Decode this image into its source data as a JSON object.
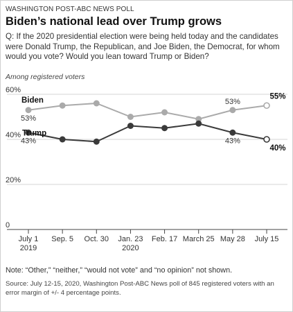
{
  "header": {
    "source_line": "WASHINGTON POST-ABC NEWS POLL",
    "title": "Biden’s national lead over Trump grows",
    "question": "Q: If the 2020 presidential election were being held today and the candidates were Donald Trump, the Republican, and Joe Biden, the Democrat, for whom would you vote?  Would you lean toward Trump or Biden?",
    "subtitle": "Among registered voters"
  },
  "footer": {
    "note": "Note: “Other,” “neither,” “would not vote” and “no opinion” not shown.",
    "source": "Source: July 12-15, 2020, Washington Post-ABC News poll of 845 registered voters with an error margin of +/- 4 percentage points."
  },
  "colors": {
    "biden": "#aaaaaa",
    "trump": "#3a3a3a",
    "grid": "#d6d6d6",
    "axis": "#444444"
  },
  "chart_data": {
    "type": "line",
    "categories": [
      [
        "July 1",
        "2019"
      ],
      [
        "Sep. 5",
        ""
      ],
      [
        "Oct. 30",
        ""
      ],
      [
        "Jan. 23",
        "2020"
      ],
      [
        "Feb. 17",
        ""
      ],
      [
        "March 25",
        ""
      ],
      [
        "May 28",
        ""
      ],
      [
        "July 15",
        ""
      ]
    ],
    "ylim": [
      0,
      60
    ],
    "yticks": [
      {
        "value": 0,
        "label": "0"
      },
      {
        "value": 20,
        "label": "20%"
      },
      {
        "value": 40,
        "label": "40%"
      },
      {
        "value": 60,
        "label": "60%"
      }
    ],
    "grid": true,
    "series": [
      {
        "name": "Biden",
        "color": "#aaaaaa",
        "values": [
          53,
          55,
          56,
          50,
          52,
          49,
          53,
          55
        ],
        "labels": [
          {
            "index": 0,
            "text": "53%",
            "pos": "below"
          },
          {
            "index": 6,
            "text": "53%",
            "pos": "above"
          },
          {
            "index": 7,
            "text": "55%",
            "pos": "right-bold"
          }
        ]
      },
      {
        "name": "Trump",
        "color": "#3a3a3a",
        "values": [
          43,
          40,
          39,
          46,
          45,
          47,
          43,
          40
        ],
        "labels": [
          {
            "index": 0,
            "text": "43%",
            "pos": "below"
          },
          {
            "index": 6,
            "text": "43%",
            "pos": "below"
          },
          {
            "index": 7,
            "text": "40%",
            "pos": "right-bold"
          }
        ]
      }
    ]
  }
}
